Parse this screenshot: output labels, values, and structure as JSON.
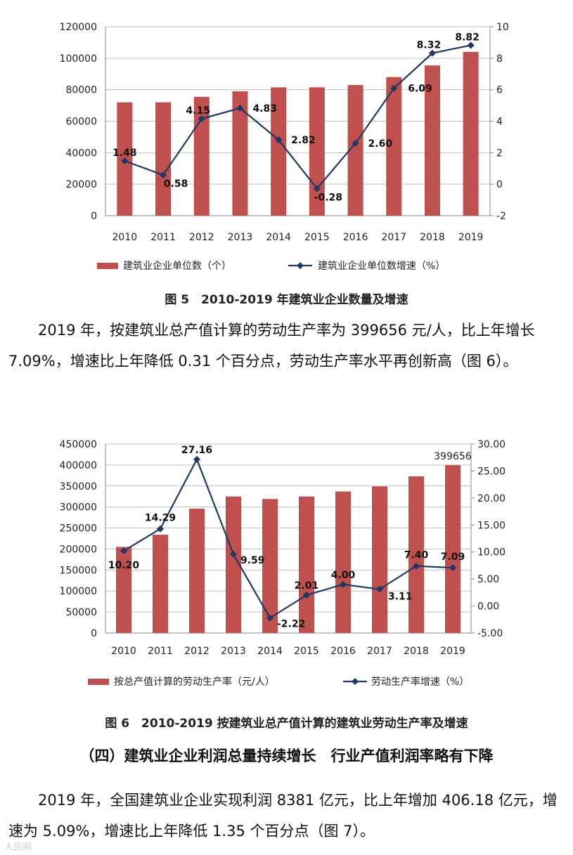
{
  "chart_data": [
    {
      "type": "bar",
      "categories": [
        "2010",
        "2011",
        "2012",
        "2013",
        "2014",
        "2015",
        "2016",
        "2017",
        "2018",
        "2019"
      ],
      "series": [
        {
          "name": "建筑业企业单位数（个）",
          "kind": "bar",
          "axis": "left",
          "values": [
            72000,
            72000,
            75500,
            79000,
            81500,
            81500,
            83000,
            88000,
            95400,
            104000
          ]
        },
        {
          "name": "建筑业企业单位数增速（%）",
          "kind": "line",
          "axis": "right",
          "values": [
            1.48,
            0.58,
            4.15,
            4.83,
            2.82,
            -0.28,
            2.6,
            6.09,
            8.32,
            8.82
          ],
          "labels": [
            "1.48",
            "0.58",
            "4.15",
            "4.83",
            "2.82",
            "-0.28",
            "2.60",
            "6.09",
            "8.32",
            "8.82"
          ]
        }
      ],
      "ylim": [
        0,
        120000
      ],
      "yticks": [
        "0",
        "20000",
        "40000",
        "60000",
        "80000",
        "100000",
        "120000"
      ],
      "y2lim": [
        -2,
        10
      ],
      "y2ticks": [
        "-2",
        "0",
        "2",
        "4",
        "6",
        "8",
        "10"
      ],
      "legend_position": "bottom",
      "colors": {
        "bar": "#c0504d",
        "line": "#1f3864"
      }
    },
    {
      "type": "bar",
      "categories": [
        "2010",
        "2011",
        "2012",
        "2013",
        "2014",
        "2015",
        "2016",
        "2017",
        "2018",
        "2019"
      ],
      "series": [
        {
          "name": "按总产值计算的劳动生产率（元/人）",
          "kind": "bar",
          "axis": "left",
          "values": [
            205000,
            234000,
            296000,
            325000,
            319000,
            325000,
            337000,
            349000,
            373000,
            399656
          ]
        },
        {
          "name": "劳动生产率增速（%）",
          "kind": "line",
          "axis": "right",
          "values": [
            10.2,
            14.29,
            27.16,
            9.59,
            -2.22,
            2.01,
            4.0,
            3.11,
            7.4,
            7.09
          ],
          "labels": [
            "10.20",
            "14.29",
            "27.16",
            "9.59",
            "-2.22",
            "2.01",
            "4.00",
            "3.11",
            "7.40",
            "7.09"
          ]
        }
      ],
      "bar_label": "399656",
      "ylim": [
        0,
        450000
      ],
      "yticks": [
        "0",
        "50000",
        "100000",
        "150000",
        "200000",
        "250000",
        "300000",
        "350000",
        "400000",
        "450000"
      ],
      "y2lim": [
        -5,
        30
      ],
      "y2ticks": [
        "-5.00",
        "0.00",
        "5.00",
        "10.00",
        "15.00",
        "20.00",
        "25.00",
        "30.00"
      ],
      "legend_position": "bottom",
      "colors": {
        "bar": "#c0504d",
        "line": "#1f3864"
      }
    }
  ],
  "captions": {
    "fig5": "图 5　2010-2019 年建筑业企业数量及增速",
    "fig6": "图 6　2010-2019 按建筑业总产值计算的建筑业劳动生产率及增速"
  },
  "paragraphs": {
    "p1": "2019 年，按建筑业总产值计算的劳动生产率为 399656 元/人，比上年增长 7.09%，增速比上年降低 0.31 个百分点，劳动生产率水平再创新高（图 6）。",
    "section_title": "（四）建筑业企业利润总量持续增长　行业产值利润率略有下降",
    "p2": "2019 年，全国建筑业企业实现利润 8381 亿元，比上年增加 406.18 亿元，增速为 5.09%，增速比上年降低 1.35 个百分点（图 7）。"
  },
  "watermark": "人民网"
}
